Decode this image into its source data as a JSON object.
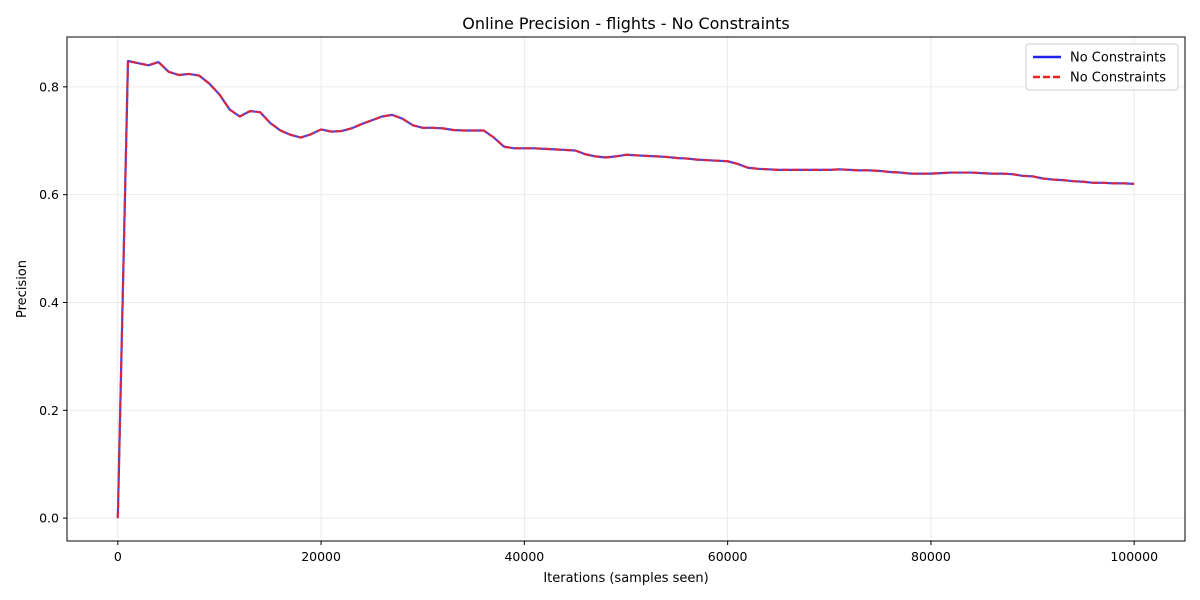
{
  "chart_data": {
    "type": "line",
    "title": "Online Precision - flights - No Constraints",
    "xlabel": "Iterations (samples seen)",
    "ylabel": "Precision",
    "xlim": [
      -5000,
      105000
    ],
    "ylim": [
      -0.0425,
      0.8925
    ],
    "xticks": [
      0,
      20000,
      40000,
      60000,
      80000,
      100000
    ],
    "yticks": [
      0.0,
      0.2,
      0.4,
      0.6,
      0.8
    ],
    "xtick_labels": [
      "0",
      "20000",
      "40000",
      "60000",
      "80000",
      "100000"
    ],
    "ytick_labels": [
      "0.0",
      "0.2",
      "0.4",
      "0.6",
      "0.8"
    ],
    "grid": true,
    "legend_position": "top-right",
    "x": [
      0,
      1000,
      2000,
      3000,
      4000,
      5000,
      6000,
      7000,
      8000,
      9000,
      10000,
      11000,
      12000,
      13000,
      14000,
      15000,
      16000,
      17000,
      18000,
      19000,
      20000,
      21000,
      22000,
      23000,
      24000,
      25000,
      26000,
      27000,
      28000,
      29000,
      30000,
      31000,
      32000,
      33000,
      34000,
      35000,
      36000,
      37000,
      38000,
      39000,
      40000,
      41000,
      42000,
      43000,
      44000,
      45000,
      46000,
      47000,
      48000,
      49000,
      50000,
      51000,
      52000,
      53000,
      54000,
      55000,
      56000,
      57000,
      58000,
      59000,
      60000,
      61000,
      62000,
      63000,
      64000,
      65000,
      66000,
      67000,
      68000,
      69000,
      70000,
      71000,
      72000,
      73000,
      74000,
      75000,
      76000,
      77000,
      78000,
      79000,
      80000,
      81000,
      82000,
      83000,
      84000,
      85000,
      86000,
      87000,
      88000,
      89000,
      90000,
      91000,
      92000,
      93000,
      94000,
      95000,
      96000,
      97000,
      98000,
      99000,
      100000
    ],
    "series": [
      {
        "name": "No Constraints",
        "color": "#2222ee",
        "style": "solid",
        "values": [
          0.0,
          0.848,
          0.844,
          0.84,
          0.846,
          0.828,
          0.822,
          0.824,
          0.821,
          0.806,
          0.786,
          0.758,
          0.745,
          0.755,
          0.753,
          0.733,
          0.719,
          0.711,
          0.706,
          0.712,
          0.721,
          0.717,
          0.718,
          0.723,
          0.731,
          0.738,
          0.745,
          0.748,
          0.741,
          0.729,
          0.724,
          0.724,
          0.723,
          0.72,
          0.719,
          0.719,
          0.719,
          0.706,
          0.689,
          0.686,
          0.686,
          0.686,
          0.685,
          0.684,
          0.683,
          0.682,
          0.675,
          0.671,
          0.669,
          0.671,
          0.674,
          0.673,
          0.672,
          0.671,
          0.67,
          0.668,
          0.667,
          0.665,
          0.664,
          0.663,
          0.662,
          0.657,
          0.65,
          0.648,
          0.647,
          0.646,
          0.646,
          0.646,
          0.646,
          0.646,
          0.646,
          0.647,
          0.646,
          0.645,
          0.645,
          0.644,
          0.642,
          0.641,
          0.639,
          0.639,
          0.639,
          0.64,
          0.641,
          0.641,
          0.641,
          0.64,
          0.639,
          0.639,
          0.638,
          0.635,
          0.634,
          0.63,
          0.628,
          0.627,
          0.625,
          0.624,
          0.622,
          0.622,
          0.621,
          0.621,
          0.62
        ]
      },
      {
        "name": "No Constraints",
        "color": "#ee2222",
        "style": "dashed",
        "values": [
          0.0,
          0.848,
          0.844,
          0.84,
          0.846,
          0.828,
          0.822,
          0.824,
          0.821,
          0.806,
          0.786,
          0.758,
          0.745,
          0.755,
          0.753,
          0.733,
          0.719,
          0.711,
          0.706,
          0.712,
          0.721,
          0.717,
          0.718,
          0.723,
          0.731,
          0.738,
          0.745,
          0.748,
          0.741,
          0.729,
          0.724,
          0.724,
          0.723,
          0.72,
          0.719,
          0.719,
          0.719,
          0.706,
          0.689,
          0.686,
          0.686,
          0.686,
          0.685,
          0.684,
          0.683,
          0.682,
          0.675,
          0.671,
          0.669,
          0.671,
          0.674,
          0.673,
          0.672,
          0.671,
          0.67,
          0.668,
          0.667,
          0.665,
          0.664,
          0.663,
          0.662,
          0.657,
          0.65,
          0.648,
          0.647,
          0.646,
          0.646,
          0.646,
          0.646,
          0.646,
          0.646,
          0.647,
          0.646,
          0.645,
          0.645,
          0.644,
          0.642,
          0.641,
          0.639,
          0.639,
          0.639,
          0.64,
          0.641,
          0.641,
          0.641,
          0.64,
          0.639,
          0.639,
          0.638,
          0.635,
          0.634,
          0.63,
          0.628,
          0.627,
          0.625,
          0.624,
          0.622,
          0.622,
          0.621,
          0.621,
          0.62
        ]
      }
    ]
  }
}
